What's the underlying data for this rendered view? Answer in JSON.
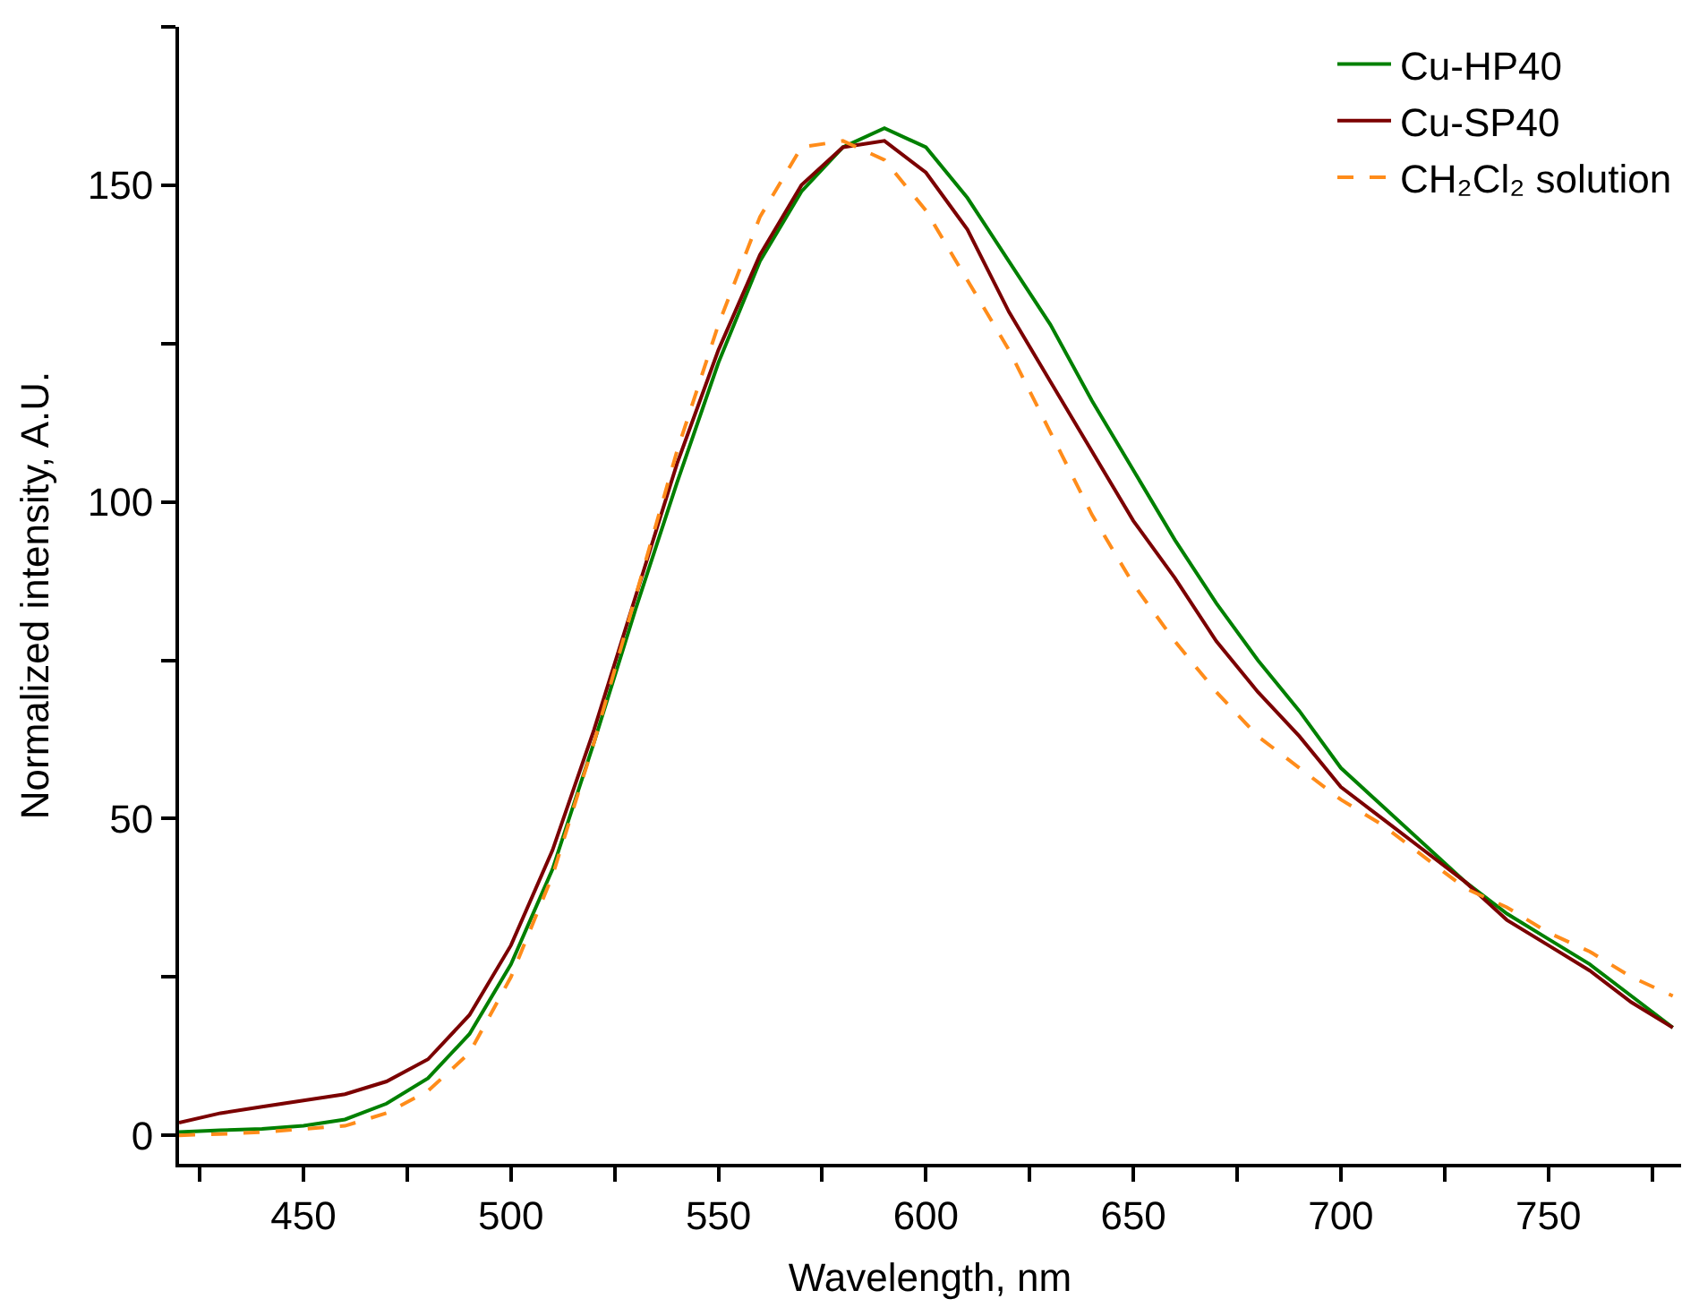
{
  "chart_data": {
    "type": "line",
    "xlabel": "Wavelength, nm",
    "ylabel": "Normalized intensity, A.U.",
    "xlim": [
      420,
      782
    ],
    "ylim": [
      -4.5,
      175
    ],
    "xticks": [
      {
        "value": 425,
        "label": null
      },
      450,
      {
        "value": 475,
        "label": null
      },
      500,
      {
        "value": 525,
        "label": null
      },
      550,
      {
        "value": 575,
        "label": null
      },
      600,
      {
        "value": 625,
        "label": null
      },
      650,
      {
        "value": 675,
        "label": null
      },
      700,
      {
        "value": 725,
        "label": null
      },
      750,
      {
        "value": 775,
        "label": null
      }
    ],
    "yticks": [
      0,
      {
        "value": 25,
        "label": null
      },
      50,
      {
        "value": 75,
        "label": null
      },
      100,
      {
        "value": 125,
        "label": null
      },
      150,
      {
        "value": 175,
        "label": null
      }
    ],
    "legend": "top right",
    "line_style": "solid",
    "x": [
      420,
      430,
      440,
      450,
      460,
      470,
      480,
      490,
      500,
      510,
      520,
      530,
      540,
      550,
      560,
      570,
      580,
      590,
      600,
      610,
      620,
      630,
      640,
      650,
      660,
      670,
      680,
      690,
      700,
      710,
      720,
      730,
      740,
      750,
      760,
      770,
      780
    ],
    "series": [
      {
        "name": "Cu-HP40",
        "color": "#008000",
        "values": [
          0.5,
          0.8,
          1,
          1.5,
          2.5,
          5,
          9,
          16,
          27,
          42,
          62,
          83,
          103,
          122,
          138,
          149,
          156,
          159,
          156,
          148,
          138,
          128,
          116,
          105,
          94,
          84,
          75,
          67,
          58,
          52,
          46,
          40,
          35,
          31,
          27,
          22,
          17
        ]
      },
      {
        "name": "Cu-SP40",
        "color": "#7b0000",
        "values": [
          2,
          3.5,
          4.5,
          5.5,
          6.5,
          8.5,
          12,
          19,
          30,
          45,
          64,
          85,
          106,
          124,
          139,
          150,
          156,
          157,
          152,
          143,
          130,
          119,
          108,
          97,
          88,
          78,
          70,
          63,
          55,
          50,
          45,
          40,
          34,
          30,
          26,
          21,
          17
        ]
      },
      {
        "name": "CH₂Cl₂ solution",
        "color": "#ff8c1a",
        "line_style": "dashed",
        "values": [
          0,
          0.2,
          0.5,
          1,
          1.5,
          3.5,
          7,
          13,
          25,
          41,
          62,
          85,
          108,
          128,
          145,
          156,
          157,
          154,
          146,
          135,
          124,
          111,
          98,
          87,
          78,
          70,
          63,
          58,
          53,
          49,
          44,
          39,
          36,
          32,
          29,
          25,
          22
        ]
      }
    ]
  }
}
